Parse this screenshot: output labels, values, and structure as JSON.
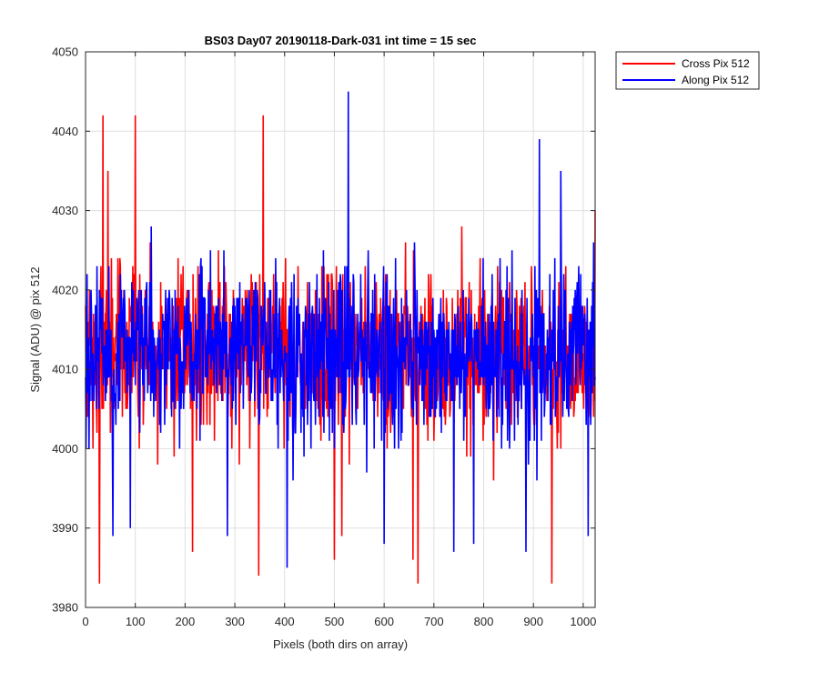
{
  "chart_data": {
    "type": "line",
    "title": "BS03 Day07 20190118-Dark-031 int time = 15 sec",
    "xlabel": "Pixels (both dirs on array)",
    "ylabel": "Signal (ADU) @ pix 512",
    "xlim": [
      0,
      1024
    ],
    "ylim": [
      3980,
      4050
    ],
    "xticks": [
      0,
      100,
      200,
      300,
      400,
      500,
      600,
      700,
      800,
      900,
      1000
    ],
    "yticks": [
      3980,
      3990,
      4000,
      4010,
      4020,
      4030,
      4040,
      4050
    ],
    "grid": true,
    "legend_position": "top-right-outside",
    "series": [
      {
        "name": "Cross Pix 512",
        "color": "#ff0000",
        "summary": {
          "mean": 4012,
          "min": 3983,
          "max": 4042,
          "noise_sd": 6
        },
        "highlights": [
          {
            "x": 28,
            "y": 3983
          },
          {
            "x": 35,
            "y": 4042
          },
          {
            "x": 45,
            "y": 4035
          },
          {
            "x": 100,
            "y": 4042
          },
          {
            "x": 215,
            "y": 3987
          },
          {
            "x": 348,
            "y": 3984
          },
          {
            "x": 357,
            "y": 4042
          },
          {
            "x": 500,
            "y": 3986
          },
          {
            "x": 515,
            "y": 3989
          },
          {
            "x": 658,
            "y": 3986
          },
          {
            "x": 668,
            "y": 3983
          },
          {
            "x": 937,
            "y": 3983
          },
          {
            "x": 1024,
            "y": 4030
          }
        ]
      },
      {
        "name": "Along Pix 512",
        "color": "#0000ff",
        "summary": {
          "mean": 4012,
          "min": 3985,
          "max": 4045,
          "noise_sd": 6
        },
        "highlights": [
          {
            "x": 55,
            "y": 3989
          },
          {
            "x": 90,
            "y": 3990
          },
          {
            "x": 285,
            "y": 3989
          },
          {
            "x": 405,
            "y": 3985
          },
          {
            "x": 528,
            "y": 4045
          },
          {
            "x": 600,
            "y": 3988
          },
          {
            "x": 740,
            "y": 3987
          },
          {
            "x": 780,
            "y": 3988
          },
          {
            "x": 885,
            "y": 3987
          },
          {
            "x": 912,
            "y": 4039
          },
          {
            "x": 955,
            "y": 4035
          },
          {
            "x": 1010,
            "y": 3989
          }
        ]
      }
    ]
  }
}
